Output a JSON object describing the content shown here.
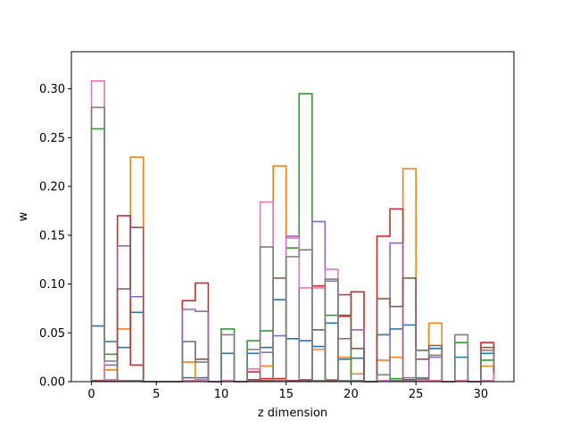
{
  "chart_data": {
    "type": "step",
    "xlabel": "z dimension",
    "ylabel": "w",
    "xlim": [
      -1.55,
      32.55
    ],
    "ylim": [
      0,
      0.338
    ],
    "xticks": [
      0,
      5,
      10,
      15,
      20,
      25,
      30
    ],
    "yticks": [
      0.0,
      0.05,
      0.1,
      0.15,
      0.2,
      0.25,
      0.3
    ],
    "ytick_labels": [
      "0.00",
      "0.05",
      "0.10",
      "0.15",
      "0.20",
      "0.25",
      "0.30"
    ],
    "bin_edges": [
      0,
      1,
      2,
      3,
      4,
      5,
      6,
      7,
      8,
      9,
      10,
      11,
      12,
      13,
      14,
      15,
      16,
      17,
      18,
      19,
      20,
      21,
      22,
      23,
      24,
      25,
      26,
      27,
      28,
      29,
      30,
      31
    ],
    "series": [
      {
        "color": "#1f77b4",
        "values": [
          0.057,
          0.041,
          0.035,
          0.071,
          0,
          0,
          0,
          0.004,
          0.004,
          0,
          0.029,
          0,
          0.029,
          0.035,
          0.084,
          0.044,
          0.042,
          0.036,
          0.06,
          0.023,
          0.024,
          0,
          0.048,
          0.054,
          0.058,
          0.032,
          0.034,
          0,
          0.025,
          0,
          0.029,
          0.038
        ]
      },
      {
        "color": "#ff7f0e",
        "values": [
          0.001,
          0.012,
          0.054,
          0.23,
          0,
          0,
          0,
          0.02,
          0.002,
          0,
          0.001,
          0,
          0.001,
          0.016,
          0.221,
          0.001,
          0.001,
          0.033,
          0.002,
          0.025,
          0.008,
          0,
          0.022,
          0.025,
          0.218,
          0.002,
          0.06,
          0,
          0.001,
          0,
          0.016,
          0.004
        ]
      },
      {
        "color": "#2ca02c",
        "values": [
          0.259,
          0.028,
          0.001,
          0.001,
          0,
          0,
          0,
          0.001,
          0.001,
          0,
          0.054,
          0,
          0.042,
          0.052,
          0.003,
          0.137,
          0.295,
          0.001,
          0.068,
          0.068,
          0.001,
          0,
          0.001,
          0.003,
          0.001,
          0.003,
          0.001,
          0,
          0.04,
          0,
          0.022,
          0.018
        ]
      },
      {
        "color": "#d62728",
        "values": [
          0.001,
          0.001,
          0.17,
          0.017,
          0,
          0,
          0,
          0.083,
          0.101,
          0,
          0.001,
          0,
          0.01,
          0.003,
          0.003,
          0.001,
          0.001,
          0.098,
          0.001,
          0.067,
          0.092,
          0,
          0.149,
          0.177,
          0.002,
          0.001,
          0.001,
          0,
          0.001,
          0,
          0.04,
          0.002
        ]
      },
      {
        "color": "#9467bd",
        "values": [
          0.001,
          0.017,
          0.139,
          0.087,
          0,
          0,
          0,
          0.074,
          0.072,
          0,
          0.001,
          0,
          0.001,
          0.03,
          0.047,
          0.149,
          0.002,
          0.164,
          0.103,
          0.044,
          0.053,
          0,
          0.007,
          0.142,
          0.004,
          0.004,
          0.025,
          0,
          0.001,
          0,
          0.001,
          0.002
        ]
      },
      {
        "color": "#8c564b",
        "values": [
          0.001,
          0.001,
          0.095,
          0.158,
          0,
          0,
          0,
          0.041,
          0.023,
          0,
          0.001,
          0,
          0.002,
          0.001,
          0.106,
          0.001,
          0.001,
          0.053,
          0.001,
          0.089,
          0.034,
          0,
          0.085,
          0.077,
          0.106,
          0.023,
          0.037,
          0,
          0.001,
          0,
          0.035,
          0.001
        ]
      },
      {
        "color": "#e377c2",
        "values": [
          0.308,
          0.002,
          0.001,
          0.001,
          0,
          0,
          0,
          0.001,
          0.001,
          0,
          0.001,
          0,
          0.013,
          0.184,
          0.001,
          0.147,
          0.096,
          0.096,
          0.115,
          0.001,
          0.001,
          0,
          0.001,
          0.001,
          0.001,
          0.001,
          0.001,
          0,
          0.001,
          0,
          0.001,
          0.009
        ]
      },
      {
        "color": "#7f7f7f",
        "values": [
          0.281,
          0.021,
          0.001,
          0.001,
          0,
          0,
          0,
          0.041,
          0.02,
          0,
          0.048,
          0,
          0.033,
          0.138,
          0.001,
          0.128,
          0.135,
          0.001,
          0.105,
          0.001,
          0.001,
          0,
          0.007,
          0.001,
          0.001,
          0.032,
          0.027,
          0,
          0.048,
          0,
          0.032,
          0.015
        ]
      }
    ]
  }
}
